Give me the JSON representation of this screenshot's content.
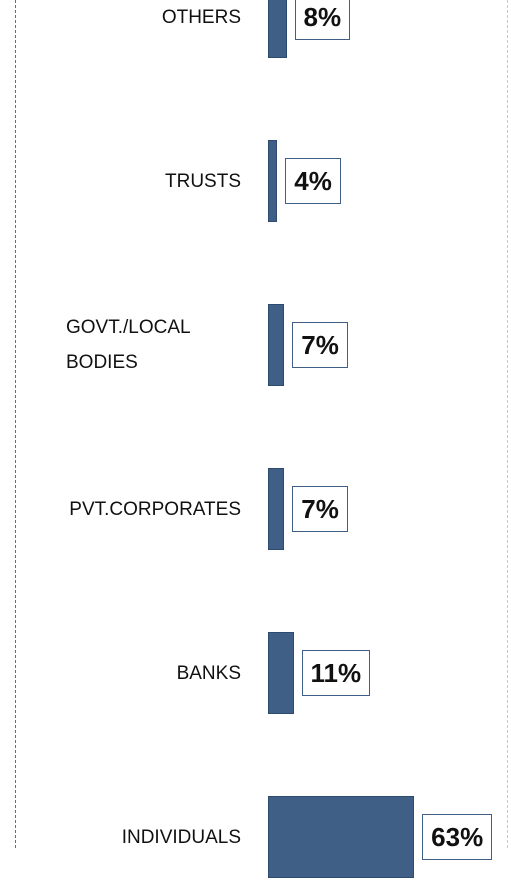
{
  "chart_data": {
    "type": "bar",
    "orientation": "horizontal",
    "categories": [
      "OTHERS",
      "TRUSTS",
      "GOVT./LOCAL BODIES",
      "PVT.CORPORATES",
      "BANKS",
      "INDIVIDUALS"
    ],
    "values": [
      8,
      4,
      7,
      7,
      11,
      63
    ],
    "value_labels": [
      "8%",
      "4%",
      "7%",
      "7%",
      "11%",
      "63%"
    ],
    "color": "#3f5f86"
  }
}
